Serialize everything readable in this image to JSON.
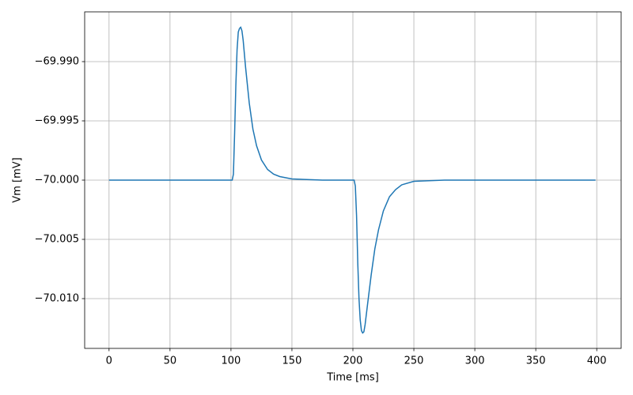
{
  "chart_data": {
    "type": "line",
    "x_label": "Time [ms]",
    "y_label": "Vm [mV]",
    "x": [
      0,
      100,
      101,
      102,
      103,
      104,
      105,
      106,
      107,
      108,
      109,
      110,
      112,
      115,
      118,
      121,
      125,
      130,
      135,
      140,
      150,
      175,
      200,
      201,
      202,
      203,
      204,
      205,
      206,
      207,
      208,
      209,
      210,
      212,
      215,
      218,
      221,
      225,
      230,
      235,
      240,
      250,
      275,
      300,
      399
    ],
    "series": [
      {
        "color": "#1f77b4",
        "values": [
          -70.0,
          -70.0,
          -70.0,
          -69.9995,
          -69.996,
          -69.992,
          -69.989,
          -69.9875,
          -69.9872,
          -69.9871,
          -69.9874,
          -69.9882,
          -69.9905,
          -69.9935,
          -69.9957,
          -69.9971,
          -69.9983,
          -69.9991,
          -69.9995,
          -69.9997,
          -69.9999,
          -70.0,
          -70.0,
          -70.0,
          -70.0005,
          -70.003,
          -70.007,
          -70.01,
          -70.0118,
          -70.0127,
          -70.0129,
          -70.0128,
          -70.0122,
          -70.0105,
          -70.008,
          -70.0058,
          -70.0042,
          -70.0026,
          -70.0014,
          -70.0008,
          -70.0004,
          -70.0001,
          -70.0,
          -70.0,
          -70.0
        ]
      }
    ],
    "xlim": [
      -20,
      420
    ],
    "xticks": [
      0,
      50,
      100,
      150,
      200,
      250,
      300,
      350,
      400
    ],
    "ylim": [
      -70.0142,
      -69.9858
    ],
    "yticks": [
      {
        "value": -70.01,
        "label": "−70.010"
      },
      {
        "value": -70.005,
        "label": "−70.005"
      },
      {
        "value": -70.0,
        "label": "−70.000"
      },
      {
        "value": -69.995,
        "label": "−69.995"
      },
      {
        "value": -69.99,
        "label": "−69.990"
      }
    ],
    "grid": true
  }
}
